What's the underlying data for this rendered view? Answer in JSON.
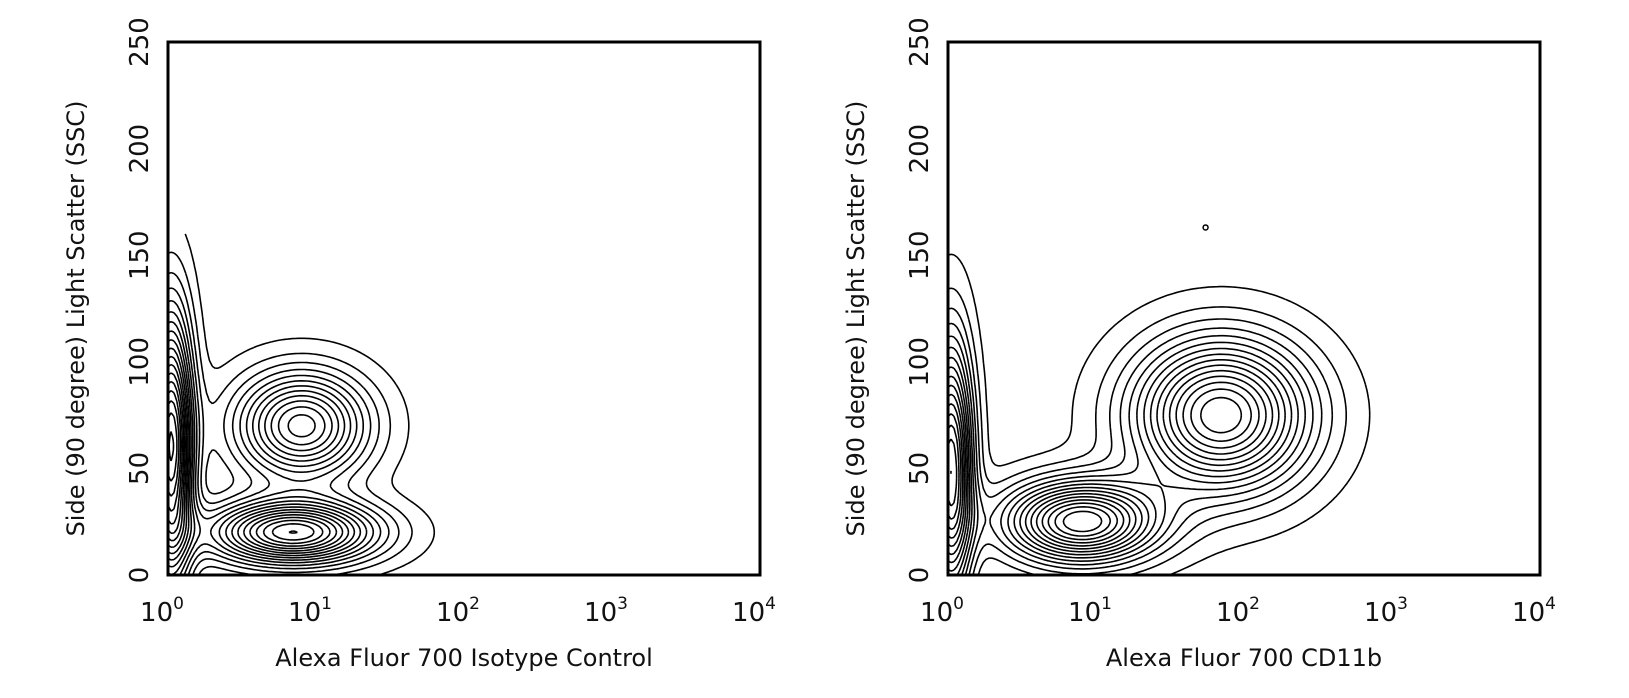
{
  "chart_data": [
    {
      "type": "contour",
      "title": "",
      "xlabel": "Alexa Fluor 700 Isotype Control",
      "ylabel": "Side (90 degree) Light Scatter (SSC)",
      "x_scale": "log",
      "xlim": [
        1,
        10000
      ],
      "ylim": [
        0,
        250
      ],
      "x_ticks": [
        {
          "base": "10",
          "exp": "0"
        },
        {
          "base": "10",
          "exp": "1"
        },
        {
          "base": "10",
          "exp": "2"
        },
        {
          "base": "10",
          "exp": "3"
        },
        {
          "base": "10",
          "exp": "4"
        }
      ],
      "y_ticks": [
        "0",
        "50",
        "100",
        "150",
        "200",
        "250"
      ],
      "populations": [
        {
          "center": [
            1.05,
            60
          ],
          "x_sigma_log": 0.1,
          "y_sigma": 42,
          "levels": 16
        },
        {
          "center": [
            8,
            70
          ],
          "x_sigma_log": 0.3,
          "y_sigma": 17,
          "levels": 11
        },
        {
          "center": [
            7,
            20
          ],
          "x_sigma_log": 0.38,
          "y_sigma": 10,
          "levels": 14
        }
      ],
      "outer_contour_max_y": 145
    },
    {
      "type": "contour",
      "title": "",
      "xlabel": "Alexa Fluor 700 CD11b",
      "ylabel": "Side (90 degree) Light Scatter (SSC)",
      "x_scale": "log",
      "xlim": [
        1,
        10000
      ],
      "ylim": [
        0,
        250
      ],
      "x_ticks": [
        {
          "base": "10",
          "exp": "0"
        },
        {
          "base": "10",
          "exp": "1"
        },
        {
          "base": "10",
          "exp": "2"
        },
        {
          "base": "10",
          "exp": "3"
        },
        {
          "base": "10",
          "exp": "4"
        }
      ],
      "y_ticks": [
        "0",
        "50",
        "100",
        "150",
        "200",
        "250"
      ],
      "populations": [
        {
          "center": [
            1.05,
            50
          ],
          "x_sigma_log": 0.1,
          "y_sigma": 40,
          "levels": 14
        },
        {
          "center": [
            8,
            25
          ],
          "x_sigma_log": 0.35,
          "y_sigma": 13,
          "levels": 14
        },
        {
          "center": [
            70,
            75
          ],
          "x_sigma_log": 0.4,
          "y_sigma": 24,
          "levels": 14
        }
      ],
      "outer_contour_max_y": 148,
      "outlier_point": [
        55,
        163
      ]
    }
  ]
}
